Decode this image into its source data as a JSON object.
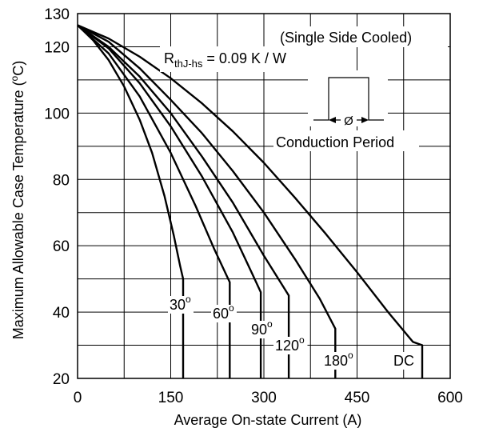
{
  "chart_data": {
    "type": "line",
    "title": "",
    "xlabel": "Average On-state Current (A)",
    "ylabel_main": "Maximum Allowable Case Temperature (",
    "ylabel_sup": "o",
    "ylabel_tail": "C)",
    "xlim": [
      0,
      600
    ],
    "ylim": [
      20,
      130
    ],
    "x_ticks": [
      0,
      150,
      300,
      450,
      600
    ],
    "y_ticks": [
      20,
      40,
      60,
      80,
      100,
      120,
      130
    ],
    "grid": true,
    "annotations": {
      "cooling": "(Single Side Cooled)",
      "rth_symbol": "R",
      "rth_sub": "thJ-hs",
      "rth_value": " = 0.09 K / W",
      "conduction_label": "Conduction Period",
      "phi_symbol": "Ø"
    },
    "series": [
      {
        "label": "30",
        "label_sup": "o",
        "label_pos": [
          300,
          250
        ],
        "points": [
          [
            0,
            126.5
          ],
          [
            25,
            122
          ],
          [
            50,
            116
          ],
          [
            75,
            108
          ],
          [
            100,
            98
          ],
          [
            120,
            88
          ],
          [
            140,
            75
          ],
          [
            155,
            63
          ],
          [
            165,
            54
          ],
          [
            170,
            50
          ],
          [
            170,
            20
          ]
        ]
      },
      {
        "label": "60",
        "label_sup": "o",
        "label_pos": [
          300,
          250
        ],
        "points": [
          [
            0,
            126.5
          ],
          [
            50,
            118
          ],
          [
            100,
            105
          ],
          [
            150,
            88
          ],
          [
            190,
            72
          ],
          [
            220,
            59
          ],
          [
            240,
            51
          ],
          [
            245,
            49
          ],
          [
            245,
            20
          ]
        ]
      },
      {
        "label": "90",
        "label_sup": "o",
        "label_pos": [
          300,
          250
        ],
        "points": [
          [
            0,
            126.5
          ],
          [
            50,
            119.5
          ],
          [
            100,
            109
          ],
          [
            150,
            96
          ],
          [
            200,
            81
          ],
          [
            250,
            64
          ],
          [
            280,
            52
          ],
          [
            295,
            46
          ],
          [
            295,
            20
          ]
        ]
      },
      {
        "label": "120",
        "label_sup": "o",
        "label_pos": [
          300,
          250
        ],
        "points": [
          [
            0,
            126.5
          ],
          [
            50,
            120
          ],
          [
            100,
            111
          ],
          [
            150,
            100
          ],
          [
            200,
            87
          ],
          [
            250,
            73
          ],
          [
            300,
            57
          ],
          [
            330,
            48
          ],
          [
            340,
            45
          ],
          [
            340,
            20
          ]
        ]
      },
      {
        "label": "180",
        "label_sup": "o",
        "label_pos": [
          300,
          250
        ],
        "points": [
          [
            0,
            126.5
          ],
          [
            50,
            121.5
          ],
          [
            100,
            113.5
          ],
          [
            150,
            104
          ],
          [
            200,
            94
          ],
          [
            250,
            82.5
          ],
          [
            300,
            70
          ],
          [
            350,
            56
          ],
          [
            390,
            44
          ],
          [
            415,
            35
          ],
          [
            415,
            20
          ]
        ]
      },
      {
        "label": "DC",
        "label_sup": "",
        "label_pos": [
          300,
          250
        ],
        "points": [
          [
            0,
            126.5
          ],
          [
            50,
            122.5
          ],
          [
            100,
            117
          ],
          [
            150,
            110.5
          ],
          [
            200,
            103
          ],
          [
            250,
            94.5
          ],
          [
            300,
            85
          ],
          [
            350,
            74.5
          ],
          [
            400,
            63.5
          ],
          [
            450,
            52
          ],
          [
            500,
            40
          ],
          [
            540,
            31
          ],
          [
            555,
            30
          ],
          [
            555,
            20
          ]
        ]
      }
    ]
  }
}
